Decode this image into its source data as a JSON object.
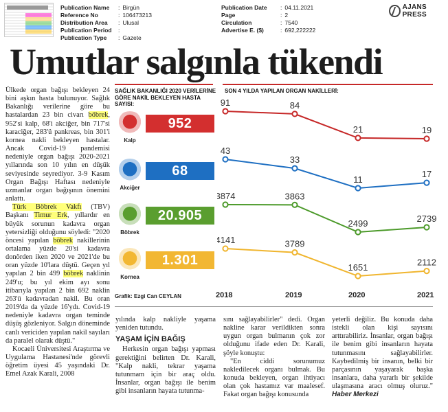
{
  "meta_left": [
    {
      "key": "Publication Name",
      "value": "Birgün"
    },
    {
      "key": "Reference No",
      "value": "106473213"
    },
    {
      "key": "Distribution Area",
      "value": "Ulusal"
    },
    {
      "key": "Publication Period",
      "value": ""
    },
    {
      "key": "Publication Type",
      "value": "Gazete"
    }
  ],
  "meta_right": [
    {
      "key": "Publication Date",
      "value": "04.11.2021"
    },
    {
      "key": "Page",
      "value": "2"
    },
    {
      "key": "Circulation",
      "value": "7540"
    },
    {
      "key": "Advertise E. ($)",
      "value": "692,222222"
    }
  ],
  "logo_text": "AJANS PRESS",
  "headline": "Umutlar salgınla tükendi",
  "article": {
    "col1": [
      {
        "type": "p",
        "segments": [
          {
            "t": "Ülkede organ bağışı bekleyen 24 bini aşkın hasta bulunuyor. Sağlık Bakanlığı verilerine göre bu hastalardan 23 bin civarı ",
            "hl": false
          },
          {
            "t": "böbrek",
            "hl": true
          },
          {
            "t": ", 952'si kalp, 68'i akciğer, bin 717'si karaciğer, 283'ü pankreas, bin 301'i kornea nakli bekleyen hastalar. Ancak Covid-19 pandemisi nedeniyle organ bağışı 2020-2021 yıllarında son 10 yılın en düşük seviyesinde seyrediyor. 3-9 Kasım Organ Bağışı Haftası nedeniyle uzmanlar organ bağışının önemini anlattı.",
            "hl": false
          }
        ]
      },
      {
        "type": "p",
        "segments": [
          {
            "t": "Türk Böbrek Vakfı",
            "hl": true
          },
          {
            "t": " (TBV) Başkanı ",
            "hl": false
          },
          {
            "t": "Timur Erk",
            "hl": true
          },
          {
            "t": ", yıllardır en büyük sorunun kadavra organ yetersizliği olduğunu söyledi: \"2020 öncesi yapılan ",
            "hl": false
          },
          {
            "t": "böbrek",
            "hl": true
          },
          {
            "t": " nakillerinin ortalama yüzde 20'si kadavra donörden iken 2020 ve 2021'de bu oran yüzde 10'lara düştü. Geçen yıl yapılan 2 bin 499 ",
            "hl": false
          },
          {
            "t": "böbrek",
            "hl": true
          },
          {
            "t": " naklinin 249'u; bu yıl ekim ayı sonu itibarıyla yapılan 2 bin 692 naklin 263'ü kadavradan nakil. Bu oran 2019'da da yüzde 16'ydı. Covid-19 nedeniyle kadavra organ teminde düşüş gözleniyor. Salgın döneminde canlı vericiden yapılan nakil sayıları da paralel olarak düştü.\"",
            "hl": false
          }
        ]
      },
      {
        "type": "p",
        "segments": [
          {
            "t": "Kocaeli Üniversitesi Araştırma ve Uygulama Hastanesi'nde görevli öğretim üyesi 45 yaşındaki Dr. Emel Azak Karali, 2008",
            "hl": false
          }
        ]
      }
    ],
    "col2_text": "yılında kalp nakliyle yaşama yeniden tutundu.",
    "col2_subhead": "YAŞAM İÇİN BAĞIŞ",
    "col2_p2": "Herkesin organ bağışı yapması gerektiğini belirten Dr. Karali, \"Kalp nakli, tekrar yaşama tutunmam için bir araç oldu. İnsanlar, organ bağışı ile benim gibi insanların hayata tutunma-",
    "col3_p1": "sını sağlayabilirler\" dedi. Organ nakline karar verildikten sonra uygun organ bulmanın çok zor olduğunu ifade eden Dr. Karali, şöyle konuştu:",
    "col3_p2": "\"En ciddi sorunumuz nakledilecek organı bulmak. Bu konuda bekleyen, organ ihtiyacı olan çok hastamız var maalesef. Fakat organ bağışı konusunda",
    "col4_p1": "yeterli değiliz. Bu konuda daha istekli olan kişi sayısını arttırabiliriz. İnsanlar, organ bağışı ile benim gibi insanların hayata tutunmasını sağlayabilirler. Kaybedilmiş bir insanın, belki bir parçasının yaşayarak başka insanlara, daha yararlı bir şekilde ulaşmasına aracı olmuş oluruz.\"",
    "signature": "Haber Merkezi"
  },
  "infographic": {
    "left_title": "SAĞLIK BAKANLIĞI 2020 VERİLERİNE GÖRE NAKİL BEKLEYEN HASTA SAYISI:",
    "right_title": "SON 4 YILDA YAPILAN ORGAN NAKİLLERİ:",
    "credit": "Grafik: Ezgi Can CEYLAN",
    "organs": [
      {
        "name": "Kalp",
        "waiting": "952",
        "color": "#d32f2f",
        "icon": "heart-icon"
      },
      {
        "name": "Akciğer",
        "waiting": "68",
        "color": "#1e6fc2",
        "icon": "lungs-icon"
      },
      {
        "name": "Böbrek",
        "waiting": "20.905",
        "color": "#5a9e2f",
        "icon": "kidney-icon"
      },
      {
        "name": "Kornea",
        "waiting": "1.301",
        "color": "#f2b733",
        "icon": "eye-icon"
      }
    ]
  },
  "chart_data": {
    "type": "line",
    "title": "SON 4 YILDA YAPILAN ORGAN NAKİLLERİ:",
    "x": [
      "2018",
      "2019",
      "2020",
      "2021"
    ],
    "series": [
      {
        "name": "Kalp",
        "values": [
          91,
          84,
          21,
          19
        ],
        "labels": [
          "91",
          "84",
          "21",
          "19"
        ],
        "color": "#c62828"
      },
      {
        "name": "Akciğer",
        "values": [
          43,
          33,
          11,
          17
        ],
        "labels": [
          "43",
          "33",
          "11",
          "17"
        ],
        "color": "#1e6fc2"
      },
      {
        "name": "Böbrek",
        "values": [
          3874,
          3863,
          2499,
          2739
        ],
        "labels": [
          "3874",
          "3863",
          "2499",
          "2739"
        ],
        "color": "#4c9a2a"
      },
      {
        "name": "Kornea",
        "values": [
          4141,
          3789,
          1651,
          2112
        ],
        "labels": [
          "4141",
          "3789",
          "1651",
          "2112"
        ],
        "color": "#f0b52e"
      }
    ]
  }
}
